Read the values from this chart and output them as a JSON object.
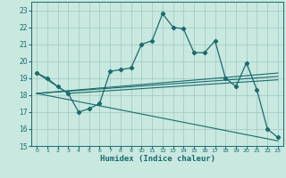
{
  "xlabel": "Humidex (Indice chaleur)",
  "xlim": [
    -0.5,
    23.5
  ],
  "ylim": [
    15,
    23.5
  ],
  "yticks": [
    15,
    16,
    17,
    18,
    19,
    20,
    21,
    22,
    23
  ],
  "xticks": [
    0,
    1,
    2,
    3,
    4,
    5,
    6,
    7,
    8,
    9,
    10,
    11,
    12,
    13,
    14,
    15,
    16,
    17,
    18,
    19,
    20,
    21,
    22,
    23
  ],
  "bg_color": "#c8e8e0",
  "line_color": "#1a6b6b",
  "grid_color": "#a0c8c0",
  "main_line": [
    [
      0,
      19.3
    ],
    [
      1,
      19.0
    ],
    [
      2,
      18.5
    ],
    [
      3,
      18.1
    ],
    [
      4,
      17.0
    ],
    [
      5,
      17.2
    ],
    [
      6,
      17.5
    ],
    [
      7,
      19.4
    ],
    [
      8,
      19.5
    ],
    [
      9,
      19.6
    ],
    [
      10,
      21.0
    ],
    [
      11,
      21.2
    ],
    [
      12,
      22.8
    ],
    [
      13,
      22.0
    ],
    [
      14,
      21.9
    ],
    [
      15,
      20.5
    ],
    [
      16,
      20.5
    ],
    [
      17,
      21.2
    ],
    [
      18,
      19.0
    ],
    [
      19,
      18.5
    ],
    [
      20,
      19.9
    ],
    [
      21,
      18.3
    ],
    [
      22,
      16.0
    ],
    [
      23,
      15.5
    ]
  ],
  "line_upper_tri": [
    [
      0,
      19.3
    ],
    [
      3,
      18.1
    ],
    [
      23,
      18.9
    ]
  ],
  "line_flat1": [
    [
      0,
      18.1
    ],
    [
      23,
      19.1
    ]
  ],
  "line_flat2": [
    [
      0,
      18.1
    ],
    [
      23,
      19.3
    ]
  ],
  "line_diag_down": [
    [
      0,
      18.1
    ],
    [
      23,
      15.3
    ]
  ]
}
